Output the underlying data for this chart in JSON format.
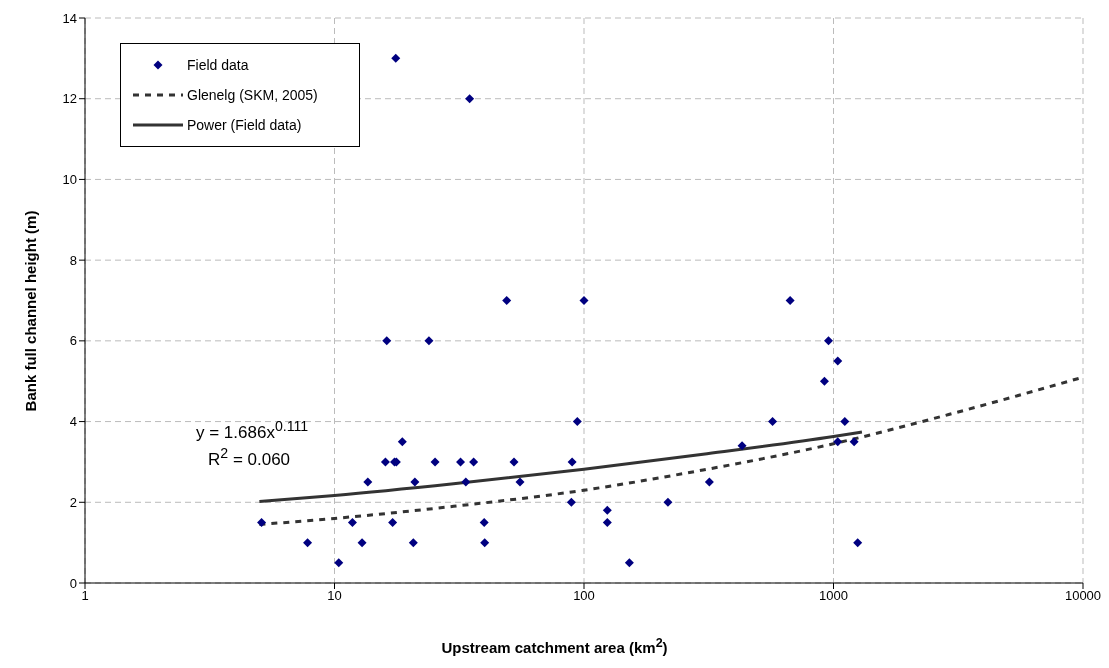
{
  "chart_data": {
    "type": "scatter",
    "xlabel": "Upstream catchment area (km$^{2}$)",
    "ylabel": "Bank full channel height (m)",
    "log": "x",
    "xlim": [
      1,
      10000
    ],
    "xticks": [
      1,
      10,
      100,
      1000,
      10000
    ],
    "ylim": [
      0,
      14
    ],
    "yticks": [
      0,
      2,
      4,
      6,
      8,
      10,
      12,
      14
    ],
    "grid": true,
    "legend": "top left",
    "annotations": [
      "y = 1.686x$^{0.111}$",
      "R$^{2}$ = 0.060"
    ],
    "series": [
      {
        "name": "Field data",
        "marker": "diamond",
        "color": "#000080",
        "x": [
          5.1,
          7.8,
          10.4,
          11.8,
          12.9,
          13.6,
          16.2,
          16,
          17.4,
          17.7,
          17.1,
          17.6,
          18.7,
          20.7,
          21,
          23.9,
          25.3,
          32,
          33.6,
          34.8,
          36.1,
          39.8,
          40,
          49,
          52.4,
          55.4,
          89,
          89.6,
          94,
          100,
          124,
          124,
          152,
          217,
          318,
          430,
          570,
          670,
          920,
          955,
          1040,
          1040,
          1110,
          1210,
          1250
        ],
        "values": [
          1.5,
          1,
          0.5,
          1.5,
          1,
          2.5,
          6,
          3,
          3,
          3,
          1.5,
          13,
          3.5,
          1,
          2.5,
          6,
          3,
          3,
          2.5,
          12,
          3,
          1.5,
          1,
          7,
          3,
          2.5,
          2,
          3,
          4,
          7,
          1.8,
          1.5,
          0.5,
          2,
          2.5,
          3.4,
          4,
          7,
          5,
          6,
          5.5,
          3.5,
          4,
          3.5,
          1
        ]
      },
      {
        "name": "Glenelg (SKM, 2005)",
        "type": "line",
        "line_style": "dashed",
        "color": "#333333",
        "x": [
          5,
          10,
          30,
          100,
          300,
          1000,
          3000,
          10000
        ],
        "values": [
          1.45,
          1.6,
          1.9,
          2.3,
          2.8,
          3.45,
          4.2,
          5.1
        ]
      },
      {
        "name": "Power (Field data)",
        "type": "line",
        "line_style": "solid",
        "color": "#333333",
        "x": [
          5,
          10,
          30,
          100,
          300,
          1000,
          1300
        ],
        "values": [
          2.02,
          2.17,
          2.46,
          2.82,
          3.19,
          3.63,
          3.74
        ]
      }
    ]
  }
}
